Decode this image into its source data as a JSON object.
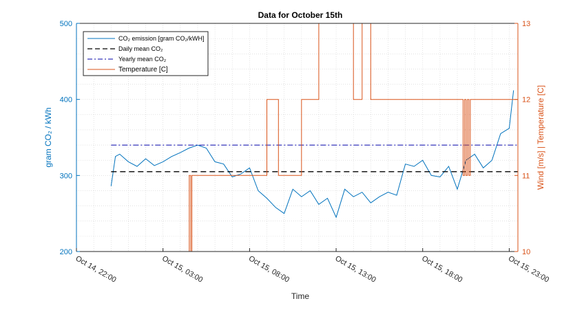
{
  "chart_data": {
    "type": "line",
    "title": "Data for October 15th",
    "xlabel": "Time",
    "ylabel_left": "gram CO₂ / kWh",
    "ylabel_right": "Wind [m/s] | Temperature [C]",
    "x_ticks": [
      "Oct 14, 22:00",
      "Oct 15, 03:00",
      "Oct 15, 08:00",
      "Oct 15, 13:00",
      "Oct 15, 18:00",
      "Oct 15, 23:00"
    ],
    "xlim": [
      "Oct 14, 22:00",
      "Oct 15, 23:30"
    ],
    "ylim_left": [
      200,
      500
    ],
    "y_ticks_left": [
      "200",
      "300",
      "400",
      "500"
    ],
    "ylim_right": [
      10,
      13
    ],
    "y_ticks_right": [
      "10",
      "11",
      "12",
      "13"
    ],
    "grid": "dotted minor grid",
    "legend_position": "top-left",
    "colors": {
      "co2": "#0072bd",
      "daily_mean": "#000000",
      "yearly_mean": "#0000aa",
      "temperature": "#d95319",
      "left_axis": "#0072bd",
      "right_axis": "#d95319"
    },
    "series": [
      {
        "name": "CO₂ emission [gram CO₂/kWH]",
        "axis": "left",
        "style": "solid",
        "x": [
          "Oct 15, 00:00",
          "Oct 15, 00:15",
          "Oct 15, 00:30",
          "Oct 15, 01:00",
          "Oct 15, 01:30",
          "Oct 15, 02:00",
          "Oct 15, 02:30",
          "Oct 15, 03:00",
          "Oct 15, 03:30",
          "Oct 15, 04:00",
          "Oct 15, 04:30",
          "Oct 15, 05:00",
          "Oct 15, 05:30",
          "Oct 15, 06:00",
          "Oct 15, 06:30",
          "Oct 15, 07:00",
          "Oct 15, 07:30",
          "Oct 15, 08:00",
          "Oct 15, 08:30",
          "Oct 15, 09:00",
          "Oct 15, 09:30",
          "Oct 15, 10:00",
          "Oct 15, 10:30",
          "Oct 15, 11:00",
          "Oct 15, 11:30",
          "Oct 15, 12:00",
          "Oct 15, 12:30",
          "Oct 15, 13:00",
          "Oct 15, 13:30",
          "Oct 15, 14:00",
          "Oct 15, 14:30",
          "Oct 15, 15:00",
          "Oct 15, 15:30",
          "Oct 15, 16:00",
          "Oct 15, 16:30",
          "Oct 15, 17:00",
          "Oct 15, 17:30",
          "Oct 15, 18:00",
          "Oct 15, 18:30",
          "Oct 15, 19:00",
          "Oct 15, 19:30",
          "Oct 15, 20:00",
          "Oct 15, 20:30",
          "Oct 15, 21:00",
          "Oct 15, 21:30",
          "Oct 15, 22:00",
          "Oct 15, 22:30",
          "Oct 15, 23:00",
          "Oct 15, 23:15"
        ],
        "values": [
          286,
          325,
          328,
          318,
          312,
          322,
          313,
          318,
          325,
          330,
          336,
          340,
          336,
          318,
          315,
          298,
          302,
          310,
          280,
          270,
          258,
          250,
          282,
          272,
          280,
          262,
          270,
          245,
          282,
          272,
          278,
          264,
          272,
          278,
          274,
          315,
          312,
          320,
          300,
          298,
          312,
          282,
          320,
          328,
          310,
          320,
          355,
          362,
          412
        ]
      },
      {
        "name": "Daily mean CO₂",
        "axis": "left",
        "style": "dashed",
        "x": [
          "Oct 15, 00:00",
          "Oct 15, 23:30"
        ],
        "values": [
          305,
          305
        ]
      },
      {
        "name": "Yearly mean CO₂",
        "axis": "left",
        "style": "dashdot",
        "x": [
          "Oct 15, 00:00",
          "Oct 15, 23:30"
        ],
        "values": [
          340,
          340
        ]
      },
      {
        "name": "Temperature [C]",
        "axis": "right",
        "style": "step",
        "x": [
          "Oct 15, 00:00",
          "Oct 15, 04:30",
          "Oct 15, 04:31",
          "Oct 15, 04:35",
          "Oct 15, 04:36",
          "Oct 15, 04:40",
          "Oct 15, 09:00",
          "Oct 15, 09:40",
          "Oct 15, 11:00",
          "Oct 15, 12:00",
          "Oct 15, 14:00",
          "Oct 15, 14:30",
          "Oct 15, 15:00",
          "Oct 15, 15:20",
          "Oct 15, 20:20",
          "Oct 15, 20:25",
          "Oct 15, 20:30",
          "Oct 15, 20:35",
          "Oct 15, 20:40",
          "Oct 15, 20:45",
          "Oct 15, 21:00",
          "Oct 15, 23:30"
        ],
        "values": [
          10,
          10,
          11,
          11,
          10,
          11,
          12,
          11,
          12,
          13,
          12,
          13,
          12,
          12,
          11,
          12,
          11,
          12,
          11,
          12,
          12,
          12
        ]
      }
    ],
    "legend": [
      "CO₂ emission [gram CO₂/kWH]",
      "Daily mean CO₂",
      "Yearly mean CO₂",
      "Temperature [C]"
    ]
  }
}
